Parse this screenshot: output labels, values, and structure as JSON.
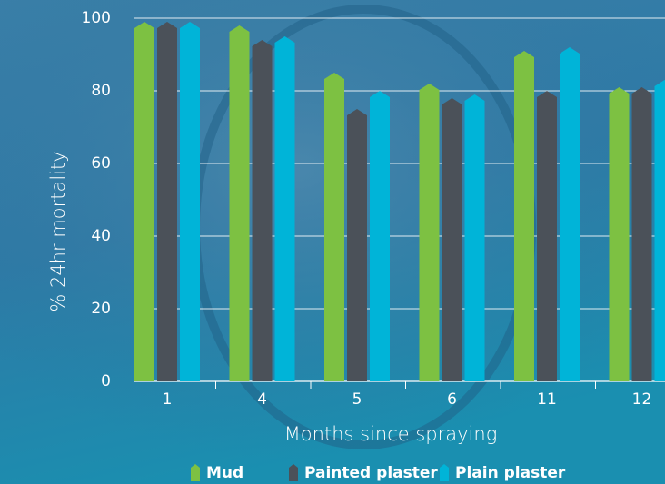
{
  "chart_data": {
    "type": "bar",
    "y_label": "% 24hr mortality",
    "x_label": "Months since spraying",
    "categories": [
      "1",
      "4",
      "5",
      "6",
      "11",
      "12"
    ],
    "series": [
      {
        "name": "Mud",
        "color": "#7dc142",
        "values": [
          99,
          98,
          85,
          82,
          91,
          81
        ]
      },
      {
        "name": "Painted plaster",
        "color": "#4b5159",
        "values": [
          99,
          94,
          75,
          78,
          80,
          81
        ]
      },
      {
        "name": "Plain plaster",
        "color": "#00b4d8",
        "values": [
          99,
          95,
          80,
          79,
          92,
          83
        ]
      }
    ],
    "ylim": [
      0,
      100
    ],
    "yticks": [
      0,
      20,
      40,
      60,
      80,
      100
    ],
    "grid": true
  }
}
